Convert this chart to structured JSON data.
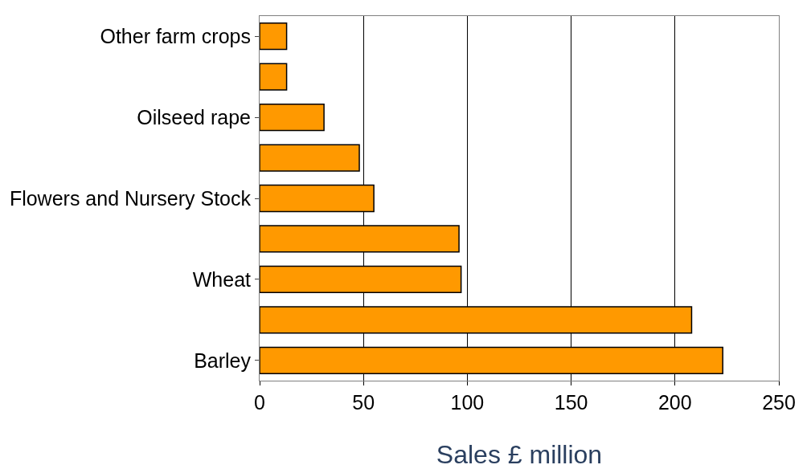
{
  "chart_data": {
    "type": "bar",
    "orientation": "horizontal",
    "xlabel": "Sales £ million",
    "categories": [
      "Other farm crops",
      null,
      "Oilseed rape",
      null,
      "Flowers and Nursery Stock",
      null,
      "Wheat",
      null,
      "Barley"
    ],
    "values": [
      13,
      13,
      31,
      48,
      55,
      96,
      97,
      208,
      223
    ],
    "color": "#ff9900",
    "xlim": [
      0,
      250
    ],
    "xticks": [
      0,
      50,
      100,
      150,
      200,
      250
    ],
    "grid": "x"
  }
}
